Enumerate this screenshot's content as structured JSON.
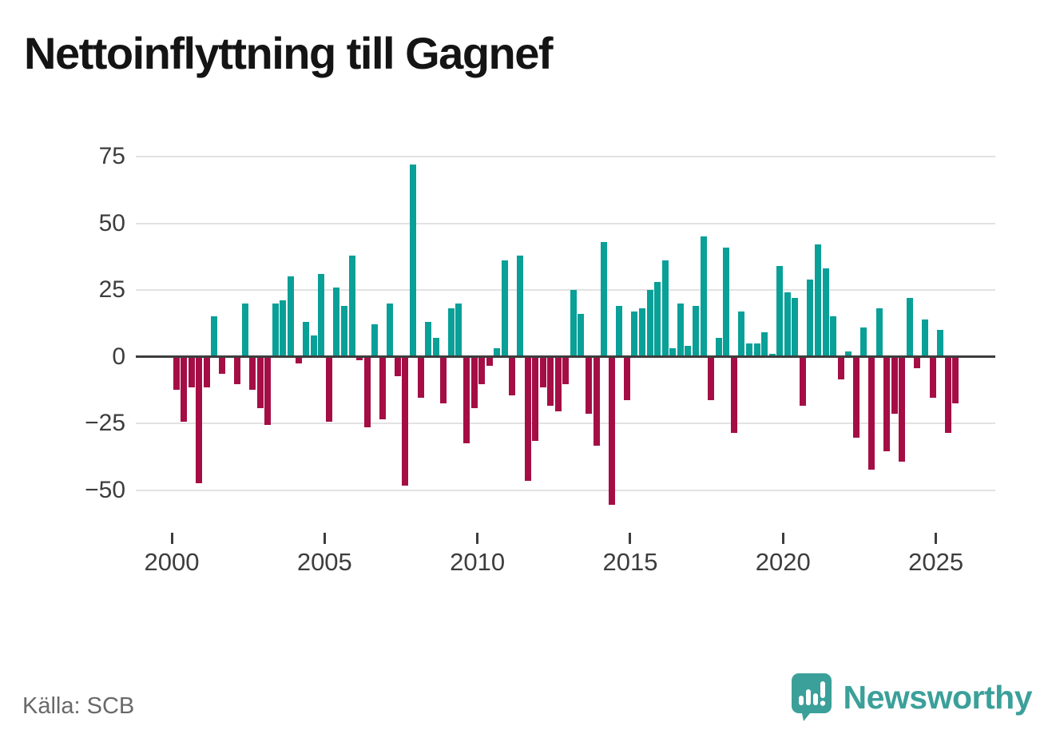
{
  "title": "Nettoinflyttning till Gagnef",
  "source": "Källa: SCB",
  "logo": {
    "text": "Newsworthy"
  },
  "colors": {
    "positive": "#09a098",
    "negative": "#a50e45",
    "grid": "#e2e2e2",
    "axis": "#3d3d3d",
    "title_text": "#141414",
    "source_text": "#696969",
    "logo_teal": "#3ba099"
  },
  "chart_data": {
    "type": "bar",
    "title": "Nettoinflyttning till Gagnef",
    "frequency": "quarterly",
    "start": "2000-Q1",
    "end": "2025-Q3",
    "values": [
      -12,
      -24,
      -11,
      -47,
      -11,
      15,
      -6,
      0,
      -10,
      20,
      -12,
      -19,
      -25,
      20,
      21,
      30,
      -2,
      13,
      8,
      31,
      -24,
      26,
      19,
      38,
      -1,
      -26,
      12,
      -23,
      20,
      -7,
      -48,
      72,
      -15,
      13,
      7,
      -17,
      18,
      20,
      -32,
      -19,
      -10,
      -3,
      3,
      36,
      -14,
      38,
      -46,
      -31,
      -11,
      -18,
      -20,
      -10,
      25,
      16,
      -21,
      -33,
      43,
      -55,
      19,
      -16,
      17,
      18,
      25,
      28,
      36,
      3,
      20,
      4,
      19,
      45,
      -16,
      7,
      41,
      -28,
      17,
      5,
      5,
      9,
      1,
      34,
      24,
      22,
      -18,
      29,
      42,
      33,
      15,
      -8,
      2,
      -30,
      11,
      -42,
      18,
      -35,
      -21,
      -39,
      22,
      -4,
      14,
      -15,
      10,
      -28,
      -17
    ],
    "y_ticks": [
      75,
      50,
      25,
      0,
      -25,
      -50
    ],
    "x_ticks": [
      2000,
      2005,
      2010,
      2015,
      2020,
      2025
    ],
    "ylim": [
      -60,
      80
    ],
    "grid": true,
    "legend": "none",
    "positive_color": "#09a098",
    "negative_color": "#a50e45",
    "source": "Källa: SCB"
  }
}
